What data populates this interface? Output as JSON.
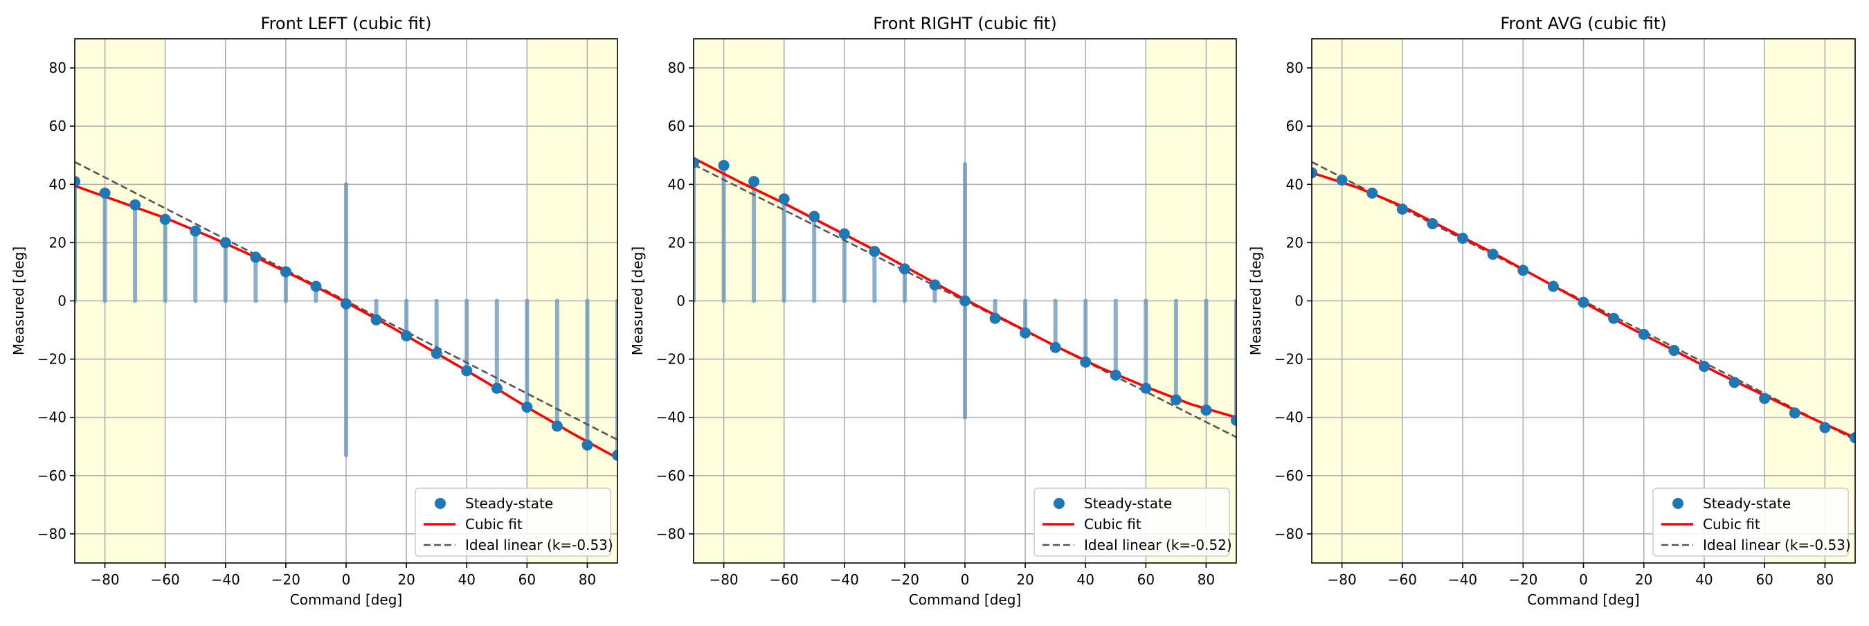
{
  "chart_data": [
    {
      "type": "scatter",
      "title": "Front LEFT (cubic fit)",
      "xlabel": "Command [deg]",
      "ylabel": "Measured [deg]",
      "xlim": [
        -90,
        90
      ],
      "ylim": [
        -90,
        90
      ],
      "xticks": [
        -80,
        -60,
        -40,
        -20,
        0,
        20,
        40,
        60,
        80
      ],
      "yticks": [
        -80,
        -60,
        -40,
        -20,
        0,
        20,
        40,
        60,
        80
      ],
      "grid": true,
      "legend_position": "lower-right",
      "saturation_bands": [
        [
          -90,
          -60
        ],
        [
          60,
          90
        ]
      ],
      "traces": [
        {
          "x": -90,
          "y0": 0,
          "y1": 42
        },
        {
          "x": -80,
          "y0": 0,
          "y1": 37
        },
        {
          "x": -70,
          "y0": 0,
          "y1": 33
        },
        {
          "x": -60,
          "y0": 0,
          "y1": 29
        },
        {
          "x": -50,
          "y0": 0,
          "y1": 24
        },
        {
          "x": -40,
          "y0": 0,
          "y1": 20
        },
        {
          "x": -30,
          "y0": 0,
          "y1": 15
        },
        {
          "x": -20,
          "y0": 0,
          "y1": 10
        },
        {
          "x": -10,
          "y0": 0,
          "y1": 5
        },
        {
          "x": 0,
          "y0": -53,
          "y1": 40
        },
        {
          "x": 10,
          "y0": -7,
          "y1": 0
        },
        {
          "x": 20,
          "y0": -12,
          "y1": 0
        },
        {
          "x": 30,
          "y0": -18,
          "y1": 0
        },
        {
          "x": 40,
          "y0": -24,
          "y1": 0
        },
        {
          "x": 50,
          "y0": -30,
          "y1": 0
        },
        {
          "x": 60,
          "y0": -37,
          "y1": 0
        },
        {
          "x": 70,
          "y0": -43,
          "y1": 0
        },
        {
          "x": 80,
          "y0": -50,
          "y1": 0
        },
        {
          "x": 90,
          "y0": -53,
          "y1": 0
        }
      ],
      "series": [
        {
          "name": "Steady-state",
          "kind": "scatter",
          "color": "#1f77b4",
          "x": [
            -90,
            -80,
            -70,
            -60,
            -50,
            -40,
            -30,
            -20,
            -10,
            0,
            10,
            20,
            30,
            40,
            50,
            60,
            70,
            80,
            90
          ],
          "y": [
            41,
            37,
            33,
            28,
            24,
            20,
            15,
            10,
            5,
            -1,
            -6.5,
            -12,
            -18,
            -24,
            -30,
            -36.5,
            -43,
            -49.5,
            -53
          ]
        },
        {
          "name": "Cubic fit",
          "kind": "line",
          "color": "#ff0000",
          "x": [
            -90,
            -75,
            -60,
            -45,
            -30,
            -15,
            0,
            15,
            30,
            45,
            60,
            75,
            90
          ],
          "y": [
            39.5,
            34,
            28.5,
            22,
            15,
            7.5,
            -0.5,
            -9,
            -18,
            -27,
            -36.5,
            -45.5,
            -54
          ]
        },
        {
          "name": "Ideal linear (k=-0.53)",
          "kind": "dashed",
          "color": "#555555",
          "x": [
            -90,
            90
          ],
          "y": [
            47.7,
            -47.7
          ]
        }
      ]
    },
    {
      "type": "scatter",
      "title": "Front RIGHT (cubic fit)",
      "xlabel": "Command [deg]",
      "ylabel": "Measured [deg]",
      "xlim": [
        -90,
        90
      ],
      "ylim": [
        -90,
        90
      ],
      "xticks": [
        -80,
        -60,
        -40,
        -20,
        0,
        20,
        40,
        60,
        80
      ],
      "yticks": [
        -80,
        -60,
        -40,
        -20,
        0,
        20,
        40,
        60,
        80
      ],
      "grid": true,
      "legend_position": "lower-right",
      "saturation_bands": [
        [
          -90,
          -60
        ],
        [
          60,
          90
        ]
      ],
      "traces": [
        {
          "x": -90,
          "y0": 0,
          "y1": 48
        },
        {
          "x": -80,
          "y0": 0,
          "y1": 46.5
        },
        {
          "x": -70,
          "y0": 0,
          "y1": 41
        },
        {
          "x": -60,
          "y0": 0,
          "y1": 35
        },
        {
          "x": -50,
          "y0": 0,
          "y1": 29
        },
        {
          "x": -40,
          "y0": 0,
          "y1": 23
        },
        {
          "x": -30,
          "y0": 0,
          "y1": 17
        },
        {
          "x": -20,
          "y0": 0,
          "y1": 11
        },
        {
          "x": -10,
          "y0": 0,
          "y1": 5.5
        },
        {
          "x": 0,
          "y0": -40,
          "y1": 47
        },
        {
          "x": 10,
          "y0": -6,
          "y1": 0
        },
        {
          "x": 20,
          "y0": -11,
          "y1": 0
        },
        {
          "x": 30,
          "y0": -16,
          "y1": 0
        },
        {
          "x": 40,
          "y0": -21,
          "y1": 0
        },
        {
          "x": 50,
          "y0": -25.5,
          "y1": 0
        },
        {
          "x": 60,
          "y0": -30,
          "y1": 0
        },
        {
          "x": 70,
          "y0": -34,
          "y1": 0
        },
        {
          "x": 80,
          "y0": -37.5,
          "y1": 0
        },
        {
          "x": 90,
          "y0": -41,
          "y1": 0
        }
      ],
      "series": [
        {
          "name": "Steady-state",
          "kind": "scatter",
          "color": "#1f77b4",
          "x": [
            -90,
            -80,
            -70,
            -60,
            -50,
            -40,
            -30,
            -20,
            -10,
            0,
            10,
            20,
            30,
            40,
            50,
            60,
            70,
            80,
            90
          ],
          "y": [
            47.5,
            46.5,
            41,
            35,
            29,
            23,
            17,
            11,
            5.5,
            0,
            -6,
            -11,
            -16,
            -21,
            -25.5,
            -30,
            -34,
            -37.5,
            -41
          ]
        },
        {
          "name": "Cubic fit",
          "kind": "line",
          "color": "#ff0000",
          "x": [
            -90,
            -75,
            -60,
            -45,
            -30,
            -15,
            0,
            15,
            30,
            45,
            60,
            75,
            90
          ],
          "y": [
            49,
            41,
            33.5,
            25.5,
            17.5,
            9,
            0.5,
            -7.5,
            -15.5,
            -23,
            -29.5,
            -35.5,
            -40
          ]
        },
        {
          "name": "Ideal linear (k=-0.52)",
          "kind": "dashed",
          "color": "#555555",
          "x": [
            -90,
            90
          ],
          "y": [
            46.8,
            -46.8
          ]
        }
      ]
    },
    {
      "type": "scatter",
      "title": "Front AVG (cubic fit)",
      "xlabel": "Command [deg]",
      "ylabel": "Measured [deg]",
      "xlim": [
        -90,
        90
      ],
      "ylim": [
        -90,
        90
      ],
      "xticks": [
        -80,
        -60,
        -40,
        -20,
        0,
        20,
        40,
        60,
        80
      ],
      "yticks": [
        -80,
        -60,
        -40,
        -20,
        0,
        20,
        40,
        60,
        80
      ],
      "grid": true,
      "legend_position": "lower-right",
      "saturation_bands": [
        [
          -90,
          -60
        ],
        [
          60,
          90
        ]
      ],
      "traces": [],
      "series": [
        {
          "name": "Steady-state",
          "kind": "scatter",
          "color": "#1f77b4",
          "x": [
            -90,
            -80,
            -70,
            -60,
            -50,
            -40,
            -30,
            -20,
            -10,
            0,
            10,
            20,
            30,
            40,
            50,
            60,
            70,
            80,
            90
          ],
          "y": [
            44,
            41.5,
            37,
            31.5,
            26.5,
            21.5,
            16,
            10.5,
            5,
            -0.5,
            -6,
            -11.5,
            -17,
            -22.5,
            -28,
            -33.5,
            -38.5,
            -43.5,
            -47
          ]
        },
        {
          "name": "Cubic fit",
          "kind": "line",
          "color": "#ff0000",
          "x": [
            -90,
            -75,
            -60,
            -45,
            -30,
            -15,
            0,
            15,
            30,
            45,
            60,
            75,
            90
          ],
          "y": [
            44,
            39,
            32.5,
            24.5,
            16.5,
            8,
            -0.5,
            -9,
            -17,
            -25,
            -32.5,
            -40,
            -47
          ]
        },
        {
          "name": "Ideal linear (k=-0.53)",
          "kind": "dashed",
          "color": "#555555",
          "x": [
            -90,
            90
          ],
          "y": [
            47.7,
            -47.7
          ]
        }
      ]
    }
  ],
  "colors": {
    "band_fill": "#ffffdd",
    "grid": "#b0b0b0",
    "trace": "#5b8db8"
  }
}
